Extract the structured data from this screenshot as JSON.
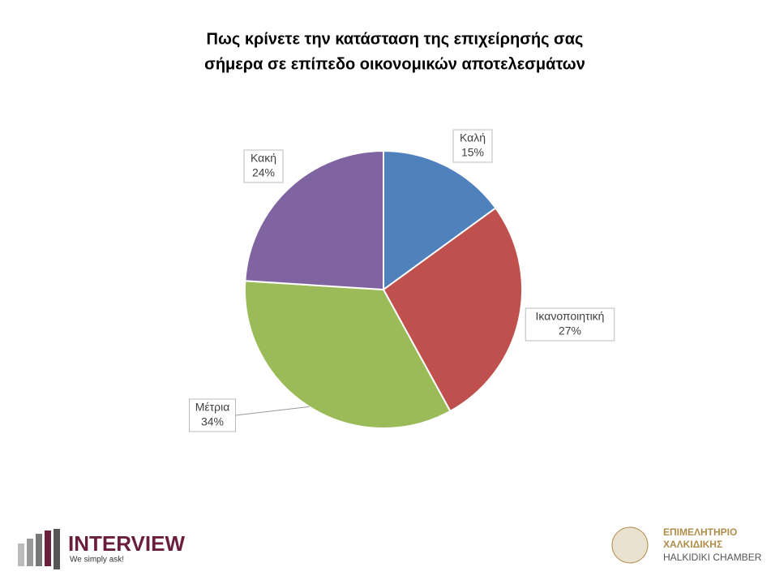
{
  "chart_data": {
    "type": "pie",
    "title": [
      "Πως κρίνετε την κατάσταση της επιχείρησής σας",
      "σήμερα σε επίπεδο οικονομικών αποτελεσμάτων"
    ],
    "categories": [
      "Καλή",
      "Ικανοποιητική",
      "Μέτρια",
      "Κακή"
    ],
    "values": [
      15,
      27,
      34,
      24
    ],
    "value_labels": [
      "15%",
      "27%",
      "34%",
      "24%"
    ],
    "colors": [
      "#4f81bd",
      "#c0504d",
      "#9bbb59",
      "#8064a2"
    ]
  },
  "logos": {
    "left": {
      "name": "INTERVIEW",
      "tagline": "We simply ask!"
    },
    "right": {
      "line1": "ΕΠΙΜΕΛΗΤΗΡΙΟ",
      "line2": "ΧΑΛΚΙΔΙΚΗΣ",
      "line3": "HALKIDIKI CHAMBER"
    }
  }
}
